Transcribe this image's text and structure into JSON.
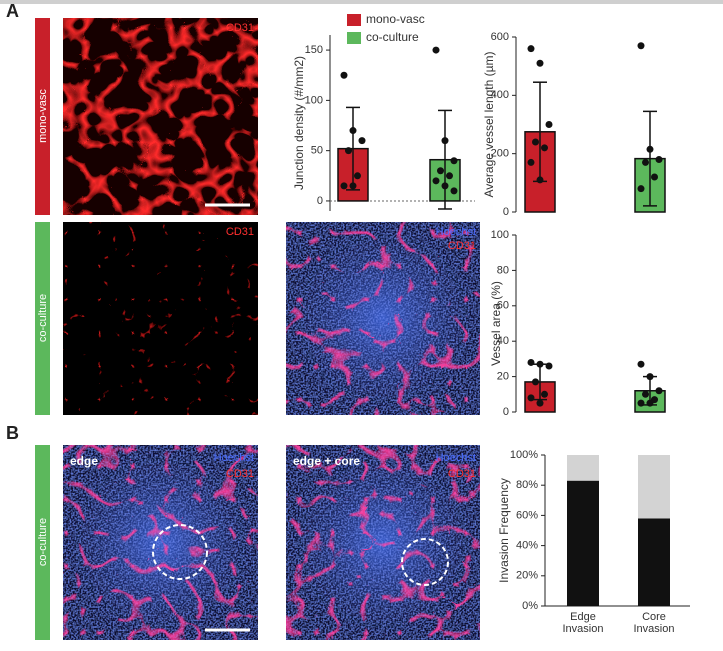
{
  "figure": {
    "panels": [
      "A",
      "B"
    ],
    "row_labels": [
      "mono-vasc",
      "co-culture",
      "co-culture"
    ],
    "images": [
      {
        "channels": [
          "CD31"
        ]
      },
      {
        "channels": [
          "CD31"
        ]
      },
      {
        "channels": [
          "Hoechst",
          "CD31"
        ]
      },
      {
        "title": "edge",
        "channels": [
          "Hoechst",
          "CD31"
        ]
      },
      {
        "title": "edge + core",
        "channels": [
          "Hoechst",
          "CD31"
        ]
      }
    ]
  },
  "chart_data": [
    {
      "type": "bar",
      "ylabel": "Junction density (#/mm2)",
      "ylim": [
        -10,
        165
      ],
      "yticks": [
        0,
        50,
        100,
        150
      ],
      "zero_line": true,
      "legend": "top",
      "series": [
        {
          "name": "mono-vasc",
          "color": "#c8202a",
          "values": [
            52
          ],
          "errors": [
            41
          ],
          "points": [
            125,
            70,
            60,
            50,
            25,
            15,
            15
          ]
        },
        {
          "name": "co-culture",
          "color": "#5cb85c",
          "values": [
            41
          ],
          "errors": [
            49
          ],
          "points": [
            150,
            60,
            40,
            30,
            25,
            20,
            15,
            10
          ]
        }
      ]
    },
    {
      "type": "bar",
      "ylabel": "Average vessel length (µm)",
      "ylim": [
        0,
        600
      ],
      "yticks": [
        0,
        200,
        400,
        600
      ],
      "series": [
        {
          "color": "#c8202a",
          "values": [
            275
          ],
          "errors": [
            170
          ],
          "points": [
            560,
            510,
            300,
            240,
            220,
            170,
            110
          ]
        },
        {
          "color": "#5cb85c",
          "values": [
            183
          ],
          "errors": [
            162
          ],
          "points": [
            570,
            215,
            180,
            170,
            120,
            80
          ]
        }
      ]
    },
    {
      "type": "bar",
      "ylabel": "Vessel area (%)",
      "ylim": [
        0,
        100
      ],
      "yticks": [
        0,
        20,
        40,
        60,
        80,
        100
      ],
      "series": [
        {
          "color": "#c8202a",
          "values": [
            17
          ],
          "errors": [
            10
          ],
          "points": [
            28,
            27,
            26,
            17,
            10,
            8,
            5
          ]
        },
        {
          "color": "#5cb85c",
          "values": [
            12
          ],
          "errors": [
            8
          ],
          "points": [
            27,
            20,
            12,
            10,
            7,
            5,
            5
          ]
        }
      ]
    },
    {
      "type": "stacked_bar",
      "ylabel": "Invasion Frequency",
      "ylim": [
        0,
        100
      ],
      "yticks": [
        {
          "value": 0,
          "label": "0%"
        },
        {
          "value": 20,
          "label": "20%"
        },
        {
          "value": 40,
          "label": "40%"
        },
        {
          "value": 60,
          "label": "60%"
        },
        {
          "value": 80,
          "label": "80%"
        },
        {
          "value": 100,
          "label": "100%"
        }
      ],
      "categories": [
        "Edge Invasion",
        "Core Invasion"
      ],
      "series": [
        {
          "color": "#111111",
          "values": [
            83,
            58
          ]
        },
        {
          "color": "#d3d3d3",
          "values": [
            17,
            42
          ]
        }
      ]
    }
  ]
}
